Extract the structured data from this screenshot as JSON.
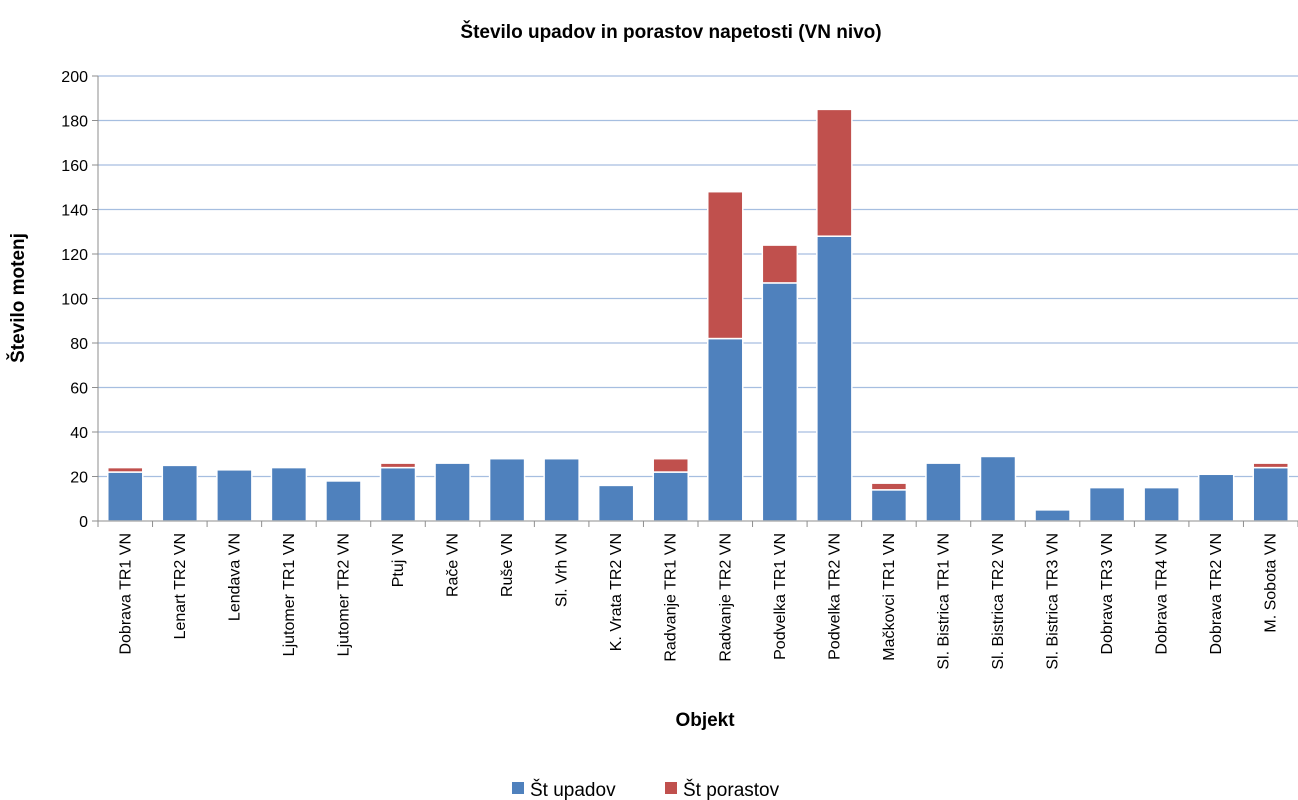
{
  "chart_data": {
    "type": "bar",
    "stacked": true,
    "title": "Število upadov in porastov napetosti (VN nivo)",
    "xlabel": "Objekt",
    "ylabel": "Število motenj",
    "ylim": [
      0,
      200
    ],
    "yticks": [
      0,
      20,
      40,
      60,
      80,
      100,
      120,
      140,
      160,
      180,
      200
    ],
    "grid": true,
    "legend_position": "bottom",
    "categories": [
      "Dobrava TR1 VN",
      "Lenart TR2 VN",
      "Lendava VN",
      "Ljutomer TR1 VN",
      "Ljutomer TR2 VN",
      "Ptuj VN",
      "Rače VN",
      "Ruše VN",
      "Sl. Vrh VN",
      "K. Vrata TR2 VN",
      "Radvanje TR1 VN",
      "Radvanje TR2 VN",
      "Podvelka TR1 VN",
      "Podvelka TR2 VN",
      "Mačkovci TR1 VN",
      "Sl. Bistrica TR1 VN",
      "Sl. Bistrica TR2 VN",
      "Sl. Bistrica TR3 VN",
      "Dobrava TR3 VN",
      "Dobrava TR4 VN",
      "Dobrava TR2 VN",
      "M. Sobota VN"
    ],
    "series": [
      {
        "name": "Št upadov",
        "color": "#4F81BD",
        "values": [
          22,
          25,
          23,
          24,
          18,
          24,
          26,
          28,
          28,
          16,
          22,
          82,
          107,
          128,
          14,
          26,
          29,
          5,
          15,
          15,
          21,
          24
        ]
      },
      {
        "name": "Št porastov",
        "color": "#C0504D",
        "values": [
          2,
          0,
          0,
          0,
          0,
          2,
          0,
          0,
          0,
          0,
          6,
          66,
          17,
          57,
          3,
          0,
          0,
          0,
          0,
          0,
          0,
          2
        ]
      }
    ]
  }
}
